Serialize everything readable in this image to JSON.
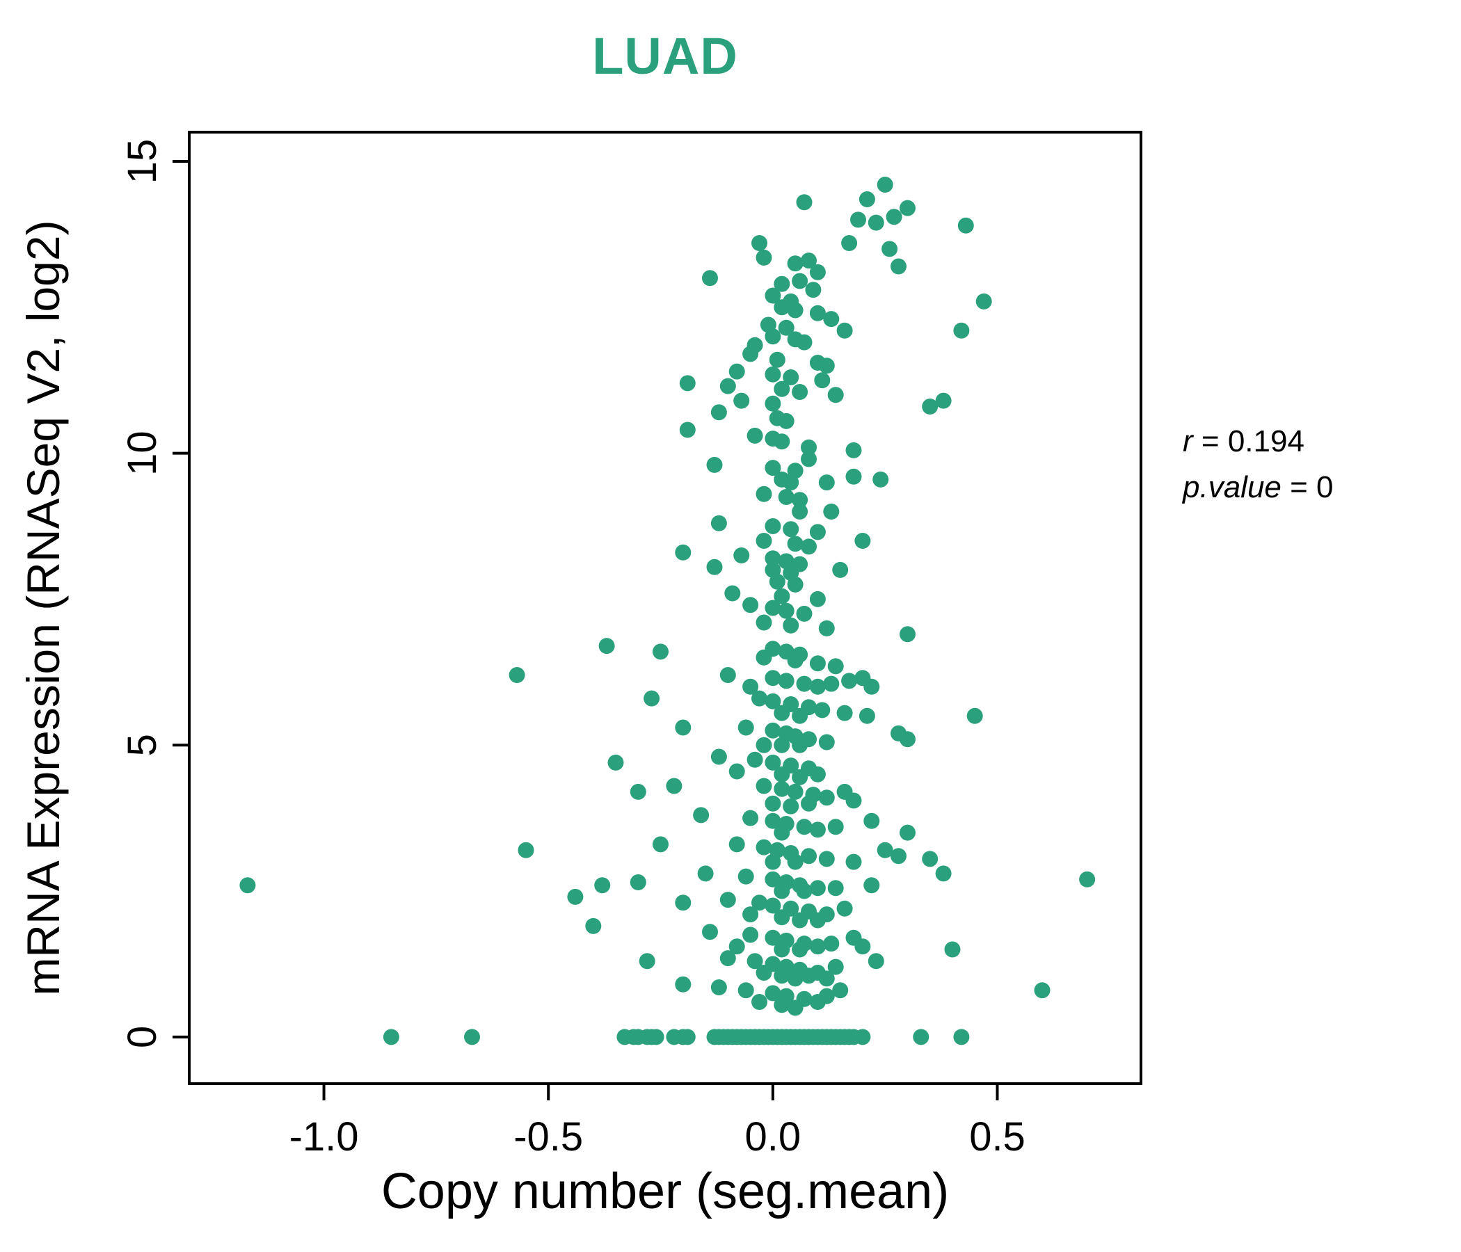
{
  "chart_data": {
    "type": "scatter",
    "title": "LUAD",
    "title_color": "#2aa17c",
    "point_color": "#2aa17c",
    "xlabel": "Copy number (seg.mean)",
    "ylabel": "mRNA Expression (RNASeq V2, log2)",
    "xlim": [
      -1.3,
      0.82
    ],
    "ylim": [
      -0.8,
      15.5
    ],
    "xticks": [
      -1.0,
      -0.5,
      0.0,
      0.5
    ],
    "xtick_labels": [
      "-1.0",
      "-0.5",
      "0.0",
      "0.5"
    ],
    "yticks": [
      0,
      5,
      10,
      15
    ],
    "ytick_labels": [
      "0",
      "5",
      "10",
      "15"
    ],
    "grid": false,
    "legend": "none",
    "correlation_r": 0.194,
    "p_value": 0,
    "points": [
      [
        0.25,
        14.6
      ],
      [
        0.21,
        14.35
      ],
      [
        0.07,
        14.3
      ],
      [
        0.3,
        14.2
      ],
      [
        0.27,
        14.05
      ],
      [
        0.19,
        14.0
      ],
      [
        0.23,
        13.95
      ],
      [
        -0.03,
        13.6
      ],
      [
        0.17,
        13.6
      ],
      [
        0.26,
        13.5
      ],
      [
        -0.02,
        13.35
      ],
      [
        0.05,
        13.25
      ],
      [
        0.08,
        13.3
      ],
      [
        0.1,
        13.1
      ],
      [
        0.28,
        13.2
      ],
      [
        0.43,
        13.9
      ],
      [
        -0.14,
        13.0
      ],
      [
        0.02,
        12.9
      ],
      [
        0.06,
        12.95
      ],
      [
        0.09,
        12.8
      ],
      [
        0.0,
        12.7
      ],
      [
        0.04,
        12.6
      ],
      [
        0.47,
        12.6
      ],
      [
        0.02,
        12.5
      ],
      [
        0.05,
        12.45
      ],
      [
        0.1,
        12.4
      ],
      [
        0.13,
        12.3
      ],
      [
        -0.01,
        12.2
      ],
      [
        0.03,
        12.15
      ],
      [
        0.16,
        12.1
      ],
      [
        0.42,
        12.1
      ],
      [
        0.0,
        12.0
      ],
      [
        0.05,
        11.95
      ],
      [
        0.07,
        11.9
      ],
      [
        -0.04,
        11.85
      ],
      [
        -0.05,
        11.7
      ],
      [
        0.01,
        11.6
      ],
      [
        0.1,
        11.55
      ],
      [
        0.12,
        11.5
      ],
      [
        -0.08,
        11.4
      ],
      [
        0.0,
        11.35
      ],
      [
        0.04,
        11.3
      ],
      [
        0.11,
        11.25
      ],
      [
        -0.19,
        11.2
      ],
      [
        -0.1,
        11.15
      ],
      [
        0.02,
        11.1
      ],
      [
        0.06,
        11.05
      ],
      [
        0.14,
        11.0
      ],
      [
        -0.07,
        10.9
      ],
      [
        0.0,
        10.85
      ],
      [
        0.35,
        10.8
      ],
      [
        0.38,
        10.9
      ],
      [
        -0.12,
        10.7
      ],
      [
        0.01,
        10.6
      ],
      [
        0.03,
        10.55
      ],
      [
        -0.19,
        10.4
      ],
      [
        -0.04,
        10.3
      ],
      [
        0.0,
        10.25
      ],
      [
        0.02,
        10.2
      ],
      [
        0.08,
        10.1
      ],
      [
        0.18,
        10.05
      ],
      [
        0.08,
        9.9
      ],
      [
        -0.13,
        9.8
      ],
      [
        0.0,
        9.75
      ],
      [
        0.05,
        9.7
      ],
      [
        0.18,
        9.6
      ],
      [
        0.02,
        9.55
      ],
      [
        0.04,
        9.5
      ],
      [
        0.12,
        9.5
      ],
      [
        0.24,
        9.55
      ],
      [
        -0.02,
        9.3
      ],
      [
        0.03,
        9.25
      ],
      [
        0.06,
        9.2
      ],
      [
        0.06,
        9.0
      ],
      [
        0.13,
        9.0
      ],
      [
        -0.12,
        8.8
      ],
      [
        0.0,
        8.75
      ],
      [
        0.04,
        8.7
      ],
      [
        0.1,
        8.65
      ],
      [
        -0.02,
        8.5
      ],
      [
        0.05,
        8.45
      ],
      [
        0.08,
        8.4
      ],
      [
        0.2,
        8.5
      ],
      [
        -0.2,
        8.3
      ],
      [
        -0.07,
        8.25
      ],
      [
        0.0,
        8.2
      ],
      [
        0.03,
        8.15
      ],
      [
        0.06,
        8.1
      ],
      [
        0.0,
        8.0
      ],
      [
        0.04,
        7.95
      ],
      [
        0.15,
        8.0
      ],
      [
        -0.13,
        8.05
      ],
      [
        0.01,
        7.8
      ],
      [
        0.05,
        7.75
      ],
      [
        -0.09,
        7.6
      ],
      [
        0.02,
        7.55
      ],
      [
        0.1,
        7.5
      ],
      [
        -0.05,
        7.4
      ],
      [
        0.0,
        7.35
      ],
      [
        0.03,
        7.3
      ],
      [
        0.07,
        7.25
      ],
      [
        -0.02,
        7.1
      ],
      [
        0.04,
        7.05
      ],
      [
        0.12,
        7.0
      ],
      [
        0.3,
        6.9
      ],
      [
        -0.37,
        6.7
      ],
      [
        -0.25,
        6.6
      ],
      [
        0.0,
        6.65
      ],
      [
        0.03,
        6.6
      ],
      [
        0.06,
        6.55
      ],
      [
        -0.02,
        6.5
      ],
      [
        0.05,
        6.45
      ],
      [
        0.1,
        6.4
      ],
      [
        0.14,
        6.35
      ],
      [
        -0.57,
        6.2
      ],
      [
        -0.1,
        6.2
      ],
      [
        0.0,
        6.15
      ],
      [
        0.03,
        6.1
      ],
      [
        0.07,
        6.05
      ],
      [
        0.1,
        6.0
      ],
      [
        0.13,
        6.05
      ],
      [
        0.17,
        6.1
      ],
      [
        0.2,
        6.15
      ],
      [
        -0.05,
        6.0
      ],
      [
        0.22,
        6.0
      ],
      [
        -0.27,
        5.8
      ],
      [
        -0.03,
        5.8
      ],
      [
        0.0,
        5.75
      ],
      [
        0.04,
        5.7
      ],
      [
        0.08,
        5.65
      ],
      [
        0.11,
        5.6
      ],
      [
        0.02,
        5.55
      ],
      [
        0.06,
        5.5
      ],
      [
        0.21,
        5.5
      ],
      [
        0.45,
        5.5
      ],
      [
        0.16,
        5.55
      ],
      [
        -0.2,
        5.3
      ],
      [
        -0.06,
        5.3
      ],
      [
        0.0,
        5.25
      ],
      [
        0.03,
        5.2
      ],
      [
        0.05,
        5.15
      ],
      [
        0.08,
        5.1
      ],
      [
        0.12,
        5.05
      ],
      [
        0.28,
        5.2
      ],
      [
        0.3,
        5.1
      ],
      [
        -0.02,
        5.0
      ],
      [
        0.02,
        5.0
      ],
      [
        0.06,
        5.0
      ],
      [
        -0.35,
        4.7
      ],
      [
        -0.12,
        4.8
      ],
      [
        -0.04,
        4.75
      ],
      [
        0.0,
        4.7
      ],
      [
        0.04,
        4.65
      ],
      [
        0.08,
        4.6
      ],
      [
        0.02,
        4.5
      ],
      [
        0.06,
        4.45
      ],
      [
        0.1,
        4.5
      ],
      [
        -0.08,
        4.55
      ],
      [
        -0.3,
        4.2
      ],
      [
        -0.22,
        4.3
      ],
      [
        -0.02,
        4.3
      ],
      [
        0.02,
        4.25
      ],
      [
        0.05,
        4.2
      ],
      [
        0.09,
        4.15
      ],
      [
        0.12,
        4.1
      ],
      [
        0.0,
        4.0
      ],
      [
        0.04,
        3.95
      ],
      [
        0.08,
        4.0
      ],
      [
        0.16,
        4.2
      ],
      [
        0.18,
        4.05
      ],
      [
        -0.16,
        3.8
      ],
      [
        -0.05,
        3.75
      ],
      [
        0.0,
        3.7
      ],
      [
        0.03,
        3.65
      ],
      [
        0.07,
        3.6
      ],
      [
        0.1,
        3.55
      ],
      [
        0.14,
        3.6
      ],
      [
        0.02,
        3.5
      ],
      [
        0.22,
        3.7
      ],
      [
        0.3,
        3.5
      ],
      [
        -0.55,
        3.2
      ],
      [
        -0.25,
        3.3
      ],
      [
        -0.08,
        3.3
      ],
      [
        -0.02,
        3.25
      ],
      [
        0.01,
        3.2
      ],
      [
        0.04,
        3.15
      ],
      [
        0.08,
        3.1
      ],
      [
        0.12,
        3.05
      ],
      [
        0.25,
        3.2
      ],
      [
        0.28,
        3.1
      ],
      [
        0.0,
        3.0
      ],
      [
        0.05,
        3.0
      ],
      [
        0.18,
        3.0
      ],
      [
        0.35,
        3.05
      ],
      [
        -1.17,
        2.6
      ],
      [
        -0.15,
        2.8
      ],
      [
        -0.06,
        2.75
      ],
      [
        0.0,
        2.7
      ],
      [
        0.03,
        2.65
      ],
      [
        0.06,
        2.6
      ],
      [
        0.1,
        2.55
      ],
      [
        0.7,
        2.7
      ],
      [
        -0.38,
        2.6
      ],
      [
        -0.3,
        2.65
      ],
      [
        0.02,
        2.5
      ],
      [
        0.07,
        2.5
      ],
      [
        0.14,
        2.55
      ],
      [
        0.22,
        2.6
      ],
      [
        0.38,
        2.8
      ],
      [
        -0.44,
        2.4
      ],
      [
        -0.2,
        2.3
      ],
      [
        -0.1,
        2.35
      ],
      [
        -0.03,
        2.3
      ],
      [
        0.0,
        2.25
      ],
      [
        0.04,
        2.2
      ],
      [
        0.08,
        2.15
      ],
      [
        0.12,
        2.1
      ],
      [
        0.02,
        2.05
      ],
      [
        0.06,
        2.0
      ],
      [
        0.16,
        2.2
      ],
      [
        -0.05,
        2.1
      ],
      [
        0.1,
        2.0
      ],
      [
        -0.4,
        1.9
      ],
      [
        -0.14,
        1.8
      ],
      [
        -0.05,
        1.75
      ],
      [
        0.0,
        1.7
      ],
      [
        0.03,
        1.65
      ],
      [
        0.07,
        1.6
      ],
      [
        0.1,
        1.55
      ],
      [
        0.02,
        1.5
      ],
      [
        0.06,
        1.5
      ],
      [
        0.13,
        1.6
      ],
      [
        0.18,
        1.7
      ],
      [
        0.4,
        1.5
      ],
      [
        -0.08,
        1.55
      ],
      [
        0.2,
        1.55
      ],
      [
        -0.28,
        1.3
      ],
      [
        -0.1,
        1.35
      ],
      [
        -0.04,
        1.3
      ],
      [
        0.0,
        1.25
      ],
      [
        0.03,
        1.2
      ],
      [
        0.06,
        1.15
      ],
      [
        0.1,
        1.1
      ],
      [
        0.14,
        1.2
      ],
      [
        0.02,
        1.05
      ],
      [
        0.05,
        1.0
      ],
      [
        0.23,
        1.3
      ],
      [
        0.08,
        1.05
      ],
      [
        -0.02,
        1.1
      ],
      [
        0.12,
        1.0
      ],
      [
        -0.2,
        0.9
      ],
      [
        -0.12,
        0.85
      ],
      [
        -0.06,
        0.8
      ],
      [
        0.0,
        0.75
      ],
      [
        0.03,
        0.7
      ],
      [
        0.07,
        0.65
      ],
      [
        0.1,
        0.6
      ],
      [
        0.02,
        0.55
      ],
      [
        0.05,
        0.5
      ],
      [
        0.6,
        0.8
      ],
      [
        -0.03,
        0.6
      ],
      [
        0.12,
        0.7
      ],
      [
        0.15,
        0.8
      ],
      [
        -0.85,
        0
      ],
      [
        -0.67,
        0
      ],
      [
        -0.33,
        0
      ],
      [
        -0.31,
        0
      ],
      [
        -0.3,
        0
      ],
      [
        -0.28,
        0
      ],
      [
        -0.27,
        0
      ],
      [
        -0.26,
        0
      ],
      [
        -0.22,
        0
      ],
      [
        -0.2,
        0
      ],
      [
        -0.19,
        0
      ],
      [
        -0.13,
        0
      ],
      [
        -0.12,
        0
      ],
      [
        -0.11,
        0
      ],
      [
        -0.1,
        0
      ],
      [
        -0.09,
        0
      ],
      [
        -0.08,
        0
      ],
      [
        -0.07,
        0
      ],
      [
        -0.06,
        0
      ],
      [
        -0.05,
        0
      ],
      [
        -0.04,
        0
      ],
      [
        -0.03,
        0
      ],
      [
        -0.02,
        0
      ],
      [
        -0.01,
        0
      ],
      [
        0,
        0
      ],
      [
        0.01,
        0
      ],
      [
        0.02,
        0
      ],
      [
        0.03,
        0
      ],
      [
        0.04,
        0
      ],
      [
        0.05,
        0
      ],
      [
        0.06,
        0
      ],
      [
        0.07,
        0
      ],
      [
        0.08,
        0
      ],
      [
        0.09,
        0
      ],
      [
        0.1,
        0
      ],
      [
        0.11,
        0
      ],
      [
        0.12,
        0
      ],
      [
        0.13,
        0
      ],
      [
        0.14,
        0
      ],
      [
        0.15,
        0
      ],
      [
        0.16,
        0
      ],
      [
        0.17,
        0
      ],
      [
        0.18,
        0
      ],
      [
        0.2,
        0
      ],
      [
        0.33,
        0
      ],
      [
        0.42,
        0
      ]
    ]
  },
  "annotation": {
    "lines": [
      {
        "variable": "r",
        "equals": " = ",
        "value": "0.194"
      },
      {
        "variable": "p.value",
        "equals": " = ",
        "value": "0"
      }
    ]
  }
}
